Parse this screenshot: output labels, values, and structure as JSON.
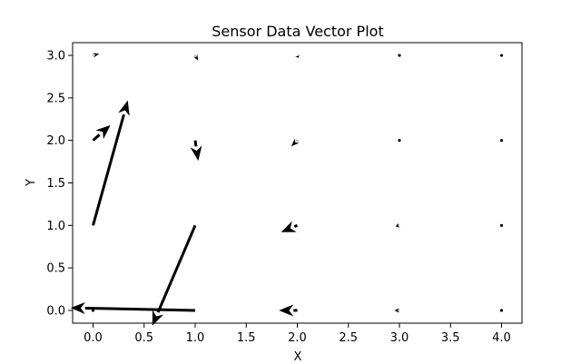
{
  "chart_data": {
    "type": "quiver",
    "title": "Sensor Data Vector Plot",
    "xlabel": "X",
    "ylabel": "Y",
    "xlim": [
      -0.2,
      4.2
    ],
    "ylim": [
      -0.15,
      3.15
    ],
    "xticks": [
      0.0,
      0.5,
      1.0,
      1.5,
      2.0,
      2.5,
      3.0,
      3.5,
      4.0
    ],
    "yticks": [
      0.0,
      0.5,
      1.0,
      1.5,
      2.0,
      2.5,
      3.0
    ],
    "xtick_labels": [
      "0.0",
      "0.5",
      "1.0",
      "1.5",
      "2.0",
      "2.5",
      "3.0",
      "3.5",
      "4.0"
    ],
    "ytick_labels": [
      "0.0",
      "0.5",
      "1.0",
      "1.5",
      "2.0",
      "2.5",
      "3.0"
    ],
    "grid": false,
    "arrow_color": "#000000",
    "vectors": [
      {
        "x": 0,
        "y": 0,
        "u": 0.01,
        "v": 0.0
      },
      {
        "x": 1,
        "y": 0,
        "u": -1.22,
        "v": 0.03
      },
      {
        "x": 2,
        "y": 0,
        "u": -0.18,
        "v": 0.0
      },
      {
        "x": 3,
        "y": 0,
        "u": -0.05,
        "v": 0.0
      },
      {
        "x": 4,
        "y": 0,
        "u": 0.0,
        "v": 0.0
      },
      {
        "x": 0,
        "y": 1,
        "u": 0.34,
        "v": 1.47
      },
      {
        "x": 1,
        "y": 1,
        "u": -0.42,
        "v": -1.18
      },
      {
        "x": 2,
        "y": 1,
        "u": -0.16,
        "v": -0.08
      },
      {
        "x": 3,
        "y": 1,
        "u": -0.04,
        "v": -0.01
      },
      {
        "x": 4,
        "y": 1,
        "u": 0.0,
        "v": 0.0
      },
      {
        "x": 0,
        "y": 2,
        "u": 0.17,
        "v": 0.18
      },
      {
        "x": 1,
        "y": 2,
        "u": 0.03,
        "v": -0.24
      },
      {
        "x": 2,
        "y": 2,
        "u": -0.06,
        "v": -0.07
      },
      {
        "x": 3,
        "y": 2,
        "u": -0.02,
        "v": -0.01
      },
      {
        "x": 4,
        "y": 2,
        "u": 0.0,
        "v": 0.0
      },
      {
        "x": 0,
        "y": 3,
        "u": 0.06,
        "v": 0.02
      },
      {
        "x": 1,
        "y": 3,
        "u": 0.03,
        "v": -0.06
      },
      {
        "x": 2,
        "y": 3,
        "u": 0.01,
        "v": -0.03
      },
      {
        "x": 3,
        "y": 3,
        "u": 0.0,
        "v": 0.0
      },
      {
        "x": 4,
        "y": 3,
        "u": 0.0,
        "v": 0.0
      }
    ]
  }
}
